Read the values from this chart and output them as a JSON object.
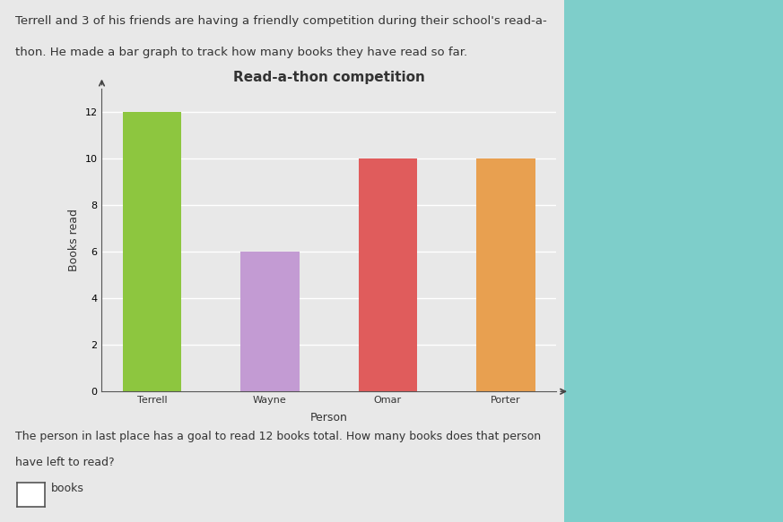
{
  "title": "Read-a-thon competition",
  "categories": [
    "Terrell",
    "Wayne",
    "Omar",
    "Porter"
  ],
  "values": [
    12,
    6,
    10,
    10
  ],
  "bar_colors": [
    "#8dc63f",
    "#c39bd3",
    "#e05c5c",
    "#e8a050"
  ],
  "ylabel": "Books read",
  "xlabel": "Person",
  "ylim": [
    0,
    13
  ],
  "yticks": [
    0,
    2,
    4,
    6,
    8,
    10,
    12
  ],
  "title_fontsize": 11,
  "label_fontsize": 9,
  "tick_fontsize": 8,
  "background_color": "#e8e8e8",
  "plot_bg_color": "#e8e8e8",
  "right_panel_color": "#7ececa",
  "header_text1": "Terrell and 3 of his friends are having a friendly competition during their school's read-a-",
  "header_text2": "thon. He made a bar graph to track how many books they have read so far.",
  "footer_text1": "The person in last place has a goal to read 12 books total. How many books does that person",
  "footer_text2": "have left to read?"
}
